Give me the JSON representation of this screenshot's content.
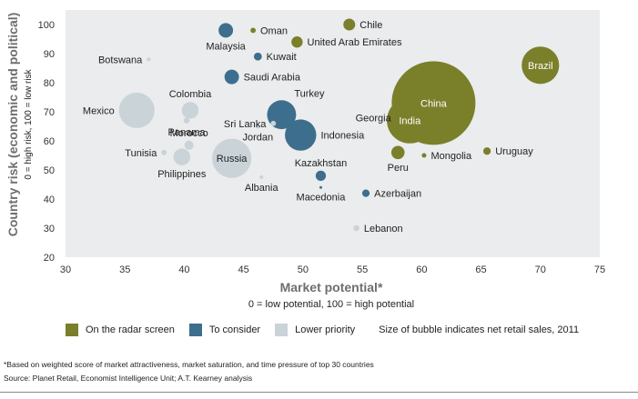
{
  "chart_data": {
    "type": "bubble",
    "xlabel": "Market potential*",
    "xsub": "0 = low potential, 100 = high potential",
    "ylabel": "Country risk (economic and political)",
    "ysub": "0 = high risk, 100 = low risk",
    "xlim": [
      30,
      75
    ],
    "ylim": [
      20,
      105
    ],
    "xticks": [
      "30",
      "35",
      "40",
      "45",
      "50",
      "55",
      "60",
      "65",
      "70",
      "75"
    ],
    "yticks": [
      "20",
      "30",
      "40",
      "50",
      "60",
      "70",
      "80",
      "90",
      "100"
    ],
    "grid": false,
    "colors": {
      "radar": "#7a7f2a",
      "consider": "#3e6e8e",
      "lower": "#c9d3d8",
      "plot_bg": "#ebeced"
    },
    "legend": [
      {
        "label": "On the radar screen",
        "color": "#7a7f2a"
      },
      {
        "label": "To consider",
        "color": "#3e6e8e"
      },
      {
        "label": "Lower priority",
        "color": "#c9d3d8"
      }
    ],
    "legend_note": "Size of bubble indicates net retail sales, 2011",
    "points": [
      {
        "name": "Chile",
        "x": 53.9,
        "y": 100,
        "group": "radar",
        "size": 2,
        "label_pos": "right"
      },
      {
        "name": "Oman",
        "x": 45.8,
        "y": 98,
        "group": "radar",
        "size": 0.4,
        "label_pos": "right"
      },
      {
        "name": "United Arab Emirates",
        "x": 49.5,
        "y": 94,
        "group": "radar",
        "size": 1.8,
        "label_pos": "right"
      },
      {
        "name": "Brazil",
        "x": 70,
        "y": 86,
        "group": "radar",
        "size": 20,
        "label_pos": "inside"
      },
      {
        "name": "China",
        "x": 61,
        "y": 73,
        "group": "radar",
        "size": 100,
        "label_pos": "inside"
      },
      {
        "name": "India",
        "x": 59,
        "y": 67,
        "group": "radar",
        "size": 30,
        "label_pos": "inside"
      },
      {
        "name": "Georgia",
        "x": 58,
        "y": 68,
        "group": "radar",
        "size": 0.3,
        "label_pos": "left"
      },
      {
        "name": "Peru",
        "x": 58,
        "y": 56,
        "group": "radar",
        "size": 2.5,
        "label_pos": "below"
      },
      {
        "name": "Mongolia",
        "x": 60.2,
        "y": 55,
        "group": "radar",
        "size": 0.3,
        "label_pos": "right"
      },
      {
        "name": "Uruguay",
        "x": 65.5,
        "y": 56.5,
        "group": "radar",
        "size": 0.8,
        "label_pos": "right"
      },
      {
        "name": "Malaysia",
        "x": 43.5,
        "y": 98,
        "group": "consider",
        "size": 3,
        "label_pos": "below"
      },
      {
        "name": "Kuwait",
        "x": 46.2,
        "y": 89,
        "group": "consider",
        "size": 0.9,
        "label_pos": "right"
      },
      {
        "name": "Saudi Arabia",
        "x": 44,
        "y": 82,
        "group": "consider",
        "size": 3,
        "label_pos": "right"
      },
      {
        "name": "Turkey",
        "x": 48.2,
        "y": 69,
        "group": "consider",
        "size": 12,
        "label_pos": "above-right"
      },
      {
        "name": "Indonesia",
        "x": 49.8,
        "y": 62,
        "group": "consider",
        "size": 14,
        "label_pos": "right"
      },
      {
        "name": "Kazakhstan",
        "x": 51.5,
        "y": 48,
        "group": "consider",
        "size": 1.5,
        "label_pos": "above"
      },
      {
        "name": "Macedonia",
        "x": 51.5,
        "y": 44,
        "group": "consider",
        "size": 0.1,
        "label_pos": "below"
      },
      {
        "name": "Azerbaijan",
        "x": 55.3,
        "y": 42,
        "group": "consider",
        "size": 0.8,
        "label_pos": "right"
      },
      {
        "name": "Botswana",
        "x": 37,
        "y": 88,
        "group": "lower",
        "size": 0.2,
        "label_pos": "left"
      },
      {
        "name": "Mexico",
        "x": 36,
        "y": 70.5,
        "group": "lower",
        "size": 18,
        "label_pos": "left"
      },
      {
        "name": "Colombia",
        "x": 40.5,
        "y": 70.5,
        "group": "lower",
        "size": 4,
        "label_pos": "above"
      },
      {
        "name": "Panama",
        "x": 40.2,
        "y": 67,
        "group": "lower",
        "size": 0.5,
        "label_pos": "below"
      },
      {
        "name": "Morocco",
        "x": 40.4,
        "y": 58.5,
        "group": "lower",
        "size": 1.2,
        "label_pos": "above"
      },
      {
        "name": "Tunisia",
        "x": 38.3,
        "y": 56,
        "group": "lower",
        "size": 0.4,
        "label_pos": "left"
      },
      {
        "name": "Philippines",
        "x": 39.8,
        "y": 54.5,
        "group": "lower",
        "size": 4,
        "label_pos": "below"
      },
      {
        "name": "Russia",
        "x": 44,
        "y": 54,
        "group": "lower",
        "size": 22,
        "label_pos": "inside-dark"
      },
      {
        "name": "Sri Lanka",
        "x": 47.5,
        "y": 66,
        "group": "lower",
        "size": 0.4,
        "label_pos": "left"
      },
      {
        "name": "Jordan",
        "x": 46.2,
        "y": 65,
        "group": "lower",
        "size": 0.3,
        "label_pos": "below"
      },
      {
        "name": "Albania",
        "x": 46.5,
        "y": 47.5,
        "group": "lower",
        "size": 0.2,
        "label_pos": "below"
      },
      {
        "name": "Lebanon",
        "x": 54.5,
        "y": 30,
        "group": "lower",
        "size": 0.5,
        "label_pos": "right"
      }
    ]
  },
  "footnotes": {
    "note1": "*Based on weighted score of market attractiveness, market saturation, and time pressure of top 30 countries",
    "note2": "Source: Planet Retail, Economist Intelligence Unit; A.T. Kearney analysis"
  }
}
